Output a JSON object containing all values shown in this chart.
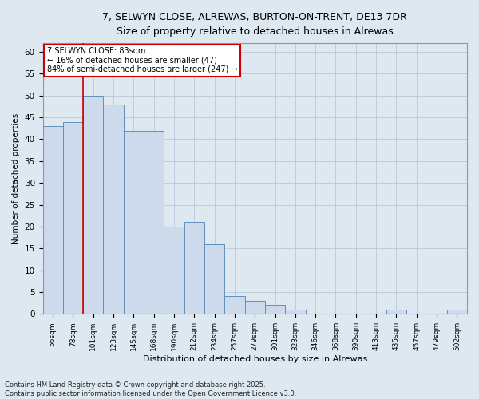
{
  "title_line1": "7, SELWYN CLOSE, ALREWAS, BURTON-ON-TRENT, DE13 7DR",
  "title_line2": "Size of property relative to detached houses in Alrewas",
  "xlabel": "Distribution of detached houses by size in Alrewas",
  "ylabel": "Number of detached properties",
  "categories": [
    "56sqm",
    "78sqm",
    "101sqm",
    "123sqm",
    "145sqm",
    "168sqm",
    "190sqm",
    "212sqm",
    "234sqm",
    "257sqm",
    "279sqm",
    "301sqm",
    "323sqm",
    "346sqm",
    "368sqm",
    "390sqm",
    "413sqm",
    "435sqm",
    "457sqm",
    "479sqm",
    "502sqm"
  ],
  "values": [
    43,
    44,
    50,
    48,
    42,
    42,
    20,
    21,
    16,
    4,
    3,
    2,
    1,
    0,
    0,
    0,
    0,
    1,
    0,
    0,
    1
  ],
  "bar_color": "#ccdaeb",
  "bar_edge_color": "#6090bb",
  "grid_color": "#b8c8d8",
  "background_color": "#dde8f0",
  "ref_line_x": 1.5,
  "annotation_text": "7 SELWYN CLOSE: 83sqm\n← 16% of detached houses are smaller (47)\n84% of semi-detached houses are larger (247) →",
  "annotation_box_color": "#ffffff",
  "annotation_box_edge": "#cc0000",
  "ref_line_color": "#cc0000",
  "ylim": [
    0,
    62
  ],
  "yticks": [
    0,
    5,
    10,
    15,
    20,
    25,
    30,
    35,
    40,
    45,
    50,
    55,
    60
  ],
  "footer": "Contains HM Land Registry data © Crown copyright and database right 2025.\nContains public sector information licensed under the Open Government Licence v3.0."
}
